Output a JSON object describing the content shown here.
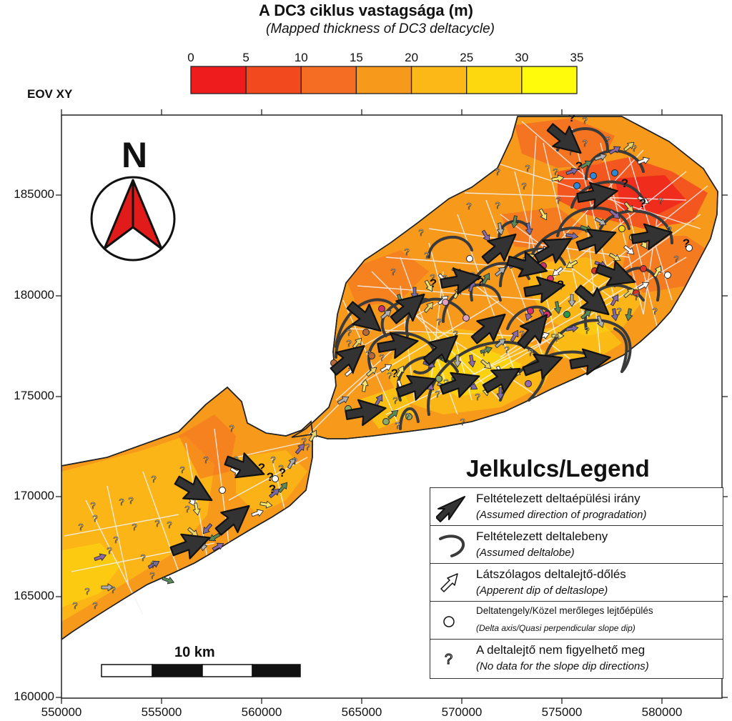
{
  "title": "A DC3 ciklus vastagsága (m)",
  "subtitle": "(Mapped thickness of DC3 deltacycle)",
  "coordinate_system_label": "EOV XY",
  "colorbar": {
    "ticks": [
      "0",
      "5",
      "10",
      "15",
      "20",
      "25",
      "30",
      "35"
    ],
    "colors": [
      "#ee1c1c",
      "#f24a1e",
      "#f46d22",
      "#f79a1c",
      "#fbb816",
      "#fdd80e",
      "#fffb0a"
    ]
  },
  "axes": {
    "x_ticks": [
      "550000",
      "555000",
      "560000",
      "565000",
      "570000",
      "575000",
      "580000"
    ],
    "y_ticks": [
      "185000",
      "180000",
      "175000",
      "170000",
      "165000",
      "160000"
    ]
  },
  "north_arrow": {
    "label": "N",
    "icon": "north-arrow-icon"
  },
  "scale_bar": {
    "label": "10 km"
  },
  "legend": {
    "title": "Jelkulcs/Legend",
    "items": [
      {
        "icon": "progradation-arrow-icon",
        "label": "Feltételezett deltaépülési irány",
        "sublabel": "(Assumed direction of progradation)"
      },
      {
        "icon": "deltalobe-curve-icon",
        "label": "Feltételezett deltalebeny",
        "sublabel": "(Assumed deltalobe)"
      },
      {
        "icon": "slope-dip-arrow-icon",
        "label": "Látszólagos deltalejtő-dőlés",
        "sublabel": "(Apperent dip of deltaslope)"
      },
      {
        "icon": "circle-icon",
        "label": "Deltatengely/Közel merőleges lejtőépülés",
        "sublabel": "(Delta axis/Quasi perpendicular slope dip)"
      },
      {
        "icon": "question-mark-icon",
        "label": "A deltalejtő nem figyelhető meg",
        "sublabel": "(No data for the slope dip directions)"
      }
    ]
  },
  "map_symbols": {
    "question_mark": "?"
  }
}
